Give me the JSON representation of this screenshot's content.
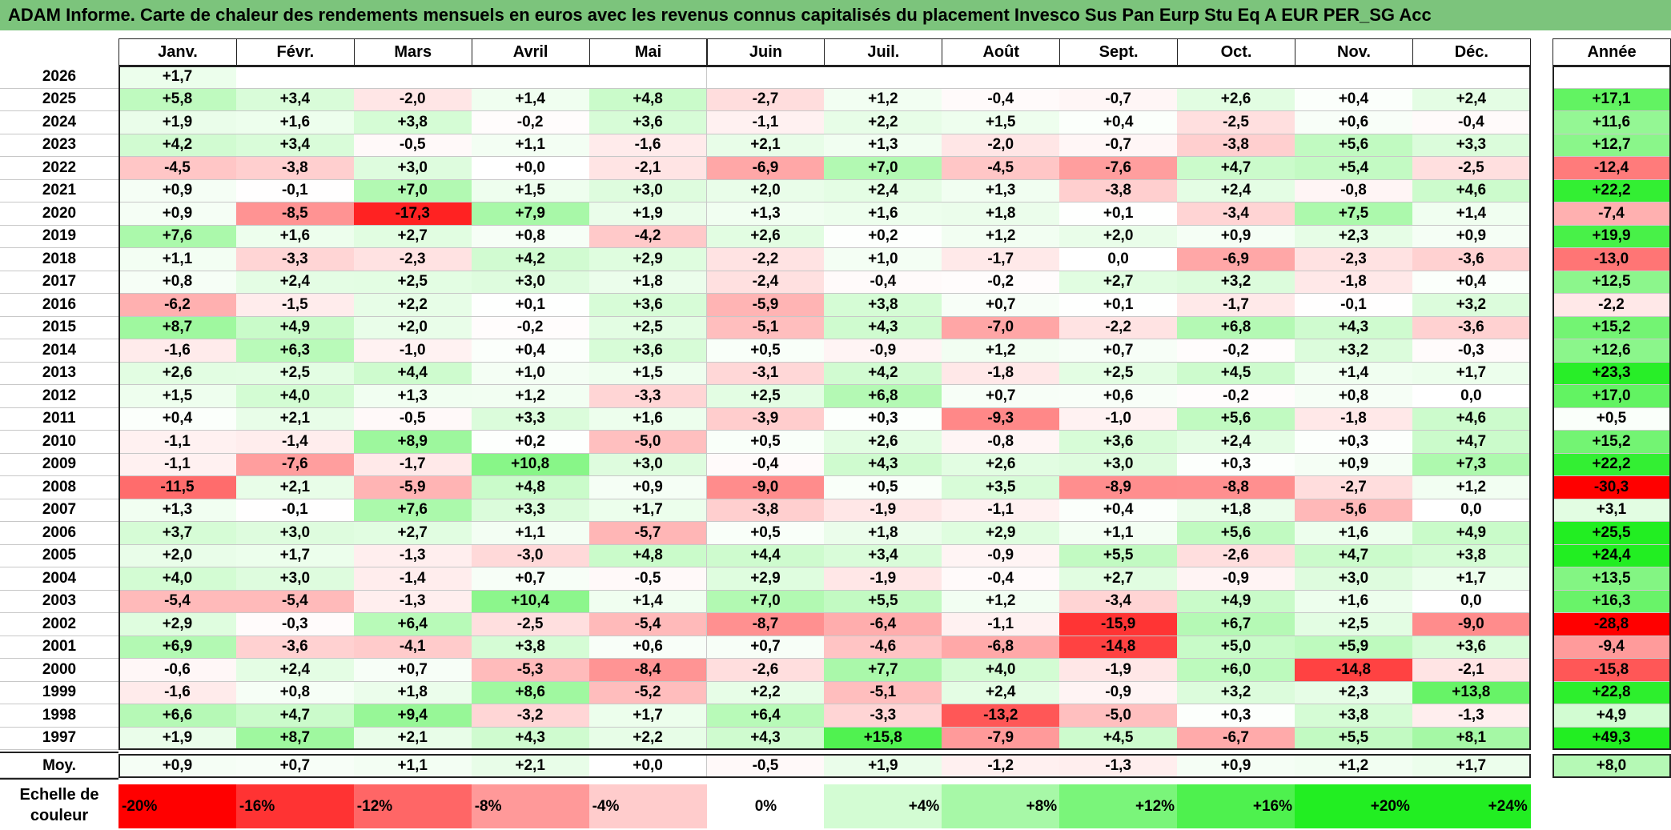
{
  "title": "ADAM Informe. Carte de chaleur des rendements mensuels en euros avec les revenus connus capitalisés du placement Invesco Sus Pan Eurp Stu Eq A EUR PER_SG Acc",
  "months": [
    "Janv.",
    "Févr.",
    "Mars",
    "Avril",
    "Mai",
    "Juin",
    "Juil.",
    "Août",
    "Sept.",
    "Oct.",
    "Nov.",
    "Déc."
  ],
  "annual_header": "Année",
  "average_label": "Moy.",
  "scale_label_1": "Echelle de",
  "scale_label_2": "couleur",
  "colors": {
    "title_bar": "#7cc47c",
    "negative_max": "#ff0000",
    "neutral": "#ffffff",
    "positive_max": "#22ee22"
  },
  "chart_data": {
    "type": "heatmap",
    "title": "ADAM Informe. Carte de chaleur des rendements mensuels en euros avec les revenus connus capitalisés du placement Invesco Sus Pan Eurp Stu Eq A EUR PER_SG Acc",
    "columns": [
      "Janv.",
      "Févr.",
      "Mars",
      "Avril",
      "Mai",
      "Juin",
      "Juil.",
      "Août",
      "Sept.",
      "Oct.",
      "Nov.",
      "Déc.",
      "Année"
    ],
    "rows": [
      {
        "year": "2026",
        "months": [
          "+1,7",
          null,
          null,
          null,
          null,
          null,
          null,
          null,
          null,
          null,
          null,
          null
        ],
        "annual": null
      },
      {
        "year": "2025",
        "months": [
          "+5,8",
          "+3,4",
          "-2,0",
          "+1,4",
          "+4,8",
          "-2,7",
          "+1,2",
          "-0,4",
          "-0,7",
          "+2,6",
          "+0,4",
          "+2,4"
        ],
        "annual": "+17,1"
      },
      {
        "year": "2024",
        "months": [
          "+1,9",
          "+1,6",
          "+3,8",
          "-0,2",
          "+3,6",
          "-1,1",
          "+2,2",
          "+1,5",
          "+0,4",
          "-2,5",
          "+0,6",
          "-0,4"
        ],
        "annual": "+11,6"
      },
      {
        "year": "2023",
        "months": [
          "+4,2",
          "+3,4",
          "-0,5",
          "+1,1",
          "-1,6",
          "+2,1",
          "+1,3",
          "-2,0",
          "-0,7",
          "-3,8",
          "+5,6",
          "+3,3"
        ],
        "annual": "+12,7"
      },
      {
        "year": "2022",
        "months": [
          "-4,5",
          "-3,8",
          "+3,0",
          "+0,0",
          "-2,1",
          "-6,9",
          "+7,0",
          "-4,5",
          "-7,6",
          "+4,7",
          "+5,4",
          "-2,5"
        ],
        "annual": "-12,4"
      },
      {
        "year": "2021",
        "months": [
          "+0,9",
          "-0,1",
          "+7,0",
          "+1,5",
          "+3,0",
          "+2,0",
          "+2,4",
          "+1,3",
          "-3,8",
          "+2,4",
          "-0,8",
          "+4,6"
        ],
        "annual": "+22,2"
      },
      {
        "year": "2020",
        "months": [
          "+0,9",
          "-8,5",
          "-17,3",
          "+7,9",
          "+1,9",
          "+1,3",
          "+1,6",
          "+1,8",
          "+0,1",
          "-3,4",
          "+7,5",
          "+1,4"
        ],
        "annual": "-7,4"
      },
      {
        "year": "2019",
        "months": [
          "+7,6",
          "+1,6",
          "+2,7",
          "+0,8",
          "-4,2",
          "+2,6",
          "+0,2",
          "+1,2",
          "+2,0",
          "+0,9",
          "+2,3",
          "+0,9"
        ],
        "annual": "+19,9"
      },
      {
        "year": "2018",
        "months": [
          "+1,1",
          "-3,3",
          "-2,3",
          "+4,2",
          "+2,9",
          "-2,2",
          "+1,0",
          "-1,7",
          "0,0",
          "-6,9",
          "-2,3",
          "-3,6"
        ],
        "annual": "-13,0"
      },
      {
        "year": "2017",
        "months": [
          "+0,8",
          "+2,4",
          "+2,5",
          "+3,0",
          "+1,8",
          "-2,4",
          "-0,4",
          "-0,2",
          "+2,7",
          "+3,2",
          "-1,8",
          "+0,4"
        ],
        "annual": "+12,5"
      },
      {
        "year": "2016",
        "months": [
          "-6,2",
          "-1,5",
          "+2,2",
          "+0,1",
          "+3,6",
          "-5,9",
          "+3,8",
          "+0,7",
          "+0,1",
          "-1,7",
          "-0,1",
          "+3,2"
        ],
        "annual": "-2,2"
      },
      {
        "year": "2015",
        "months": [
          "+8,7",
          "+4,9",
          "+2,0",
          "-0,2",
          "+2,5",
          "-5,1",
          "+4,3",
          "-7,0",
          "-2,2",
          "+6,8",
          "+4,3",
          "-3,6"
        ],
        "annual": "+15,2"
      },
      {
        "year": "2014",
        "months": [
          "-1,6",
          "+6,3",
          "-1,0",
          "+0,4",
          "+3,6",
          "+0,5",
          "-0,9",
          "+1,2",
          "+0,7",
          "-0,2",
          "+3,2",
          "-0,3"
        ],
        "annual": "+12,6"
      },
      {
        "year": "2013",
        "months": [
          "+2,6",
          "+2,5",
          "+4,4",
          "+1,0",
          "+1,5",
          "-3,1",
          "+4,2",
          "-1,8",
          "+2,5",
          "+4,5",
          "+1,4",
          "+1,7"
        ],
        "annual": "+23,3"
      },
      {
        "year": "2012",
        "months": [
          "+1,5",
          "+4,0",
          "+1,3",
          "+1,2",
          "-3,3",
          "+2,5",
          "+6,8",
          "+0,7",
          "+0,6",
          "-0,2",
          "+0,8",
          "0,0"
        ],
        "annual": "+17,0"
      },
      {
        "year": "2011",
        "months": [
          "+0,4",
          "+2,1",
          "-0,5",
          "+3,3",
          "+1,6",
          "-3,9",
          "+0,3",
          "-9,3",
          "-1,0",
          "+5,6",
          "-1,8",
          "+4,6"
        ],
        "annual": "+0,5"
      },
      {
        "year": "2010",
        "months": [
          "-1,1",
          "-1,4",
          "+8,9",
          "+0,2",
          "-5,0",
          "+0,5",
          "+2,6",
          "-0,8",
          "+3,6",
          "+2,4",
          "+0,3",
          "+4,7"
        ],
        "annual": "+15,2"
      },
      {
        "year": "2009",
        "months": [
          "-1,1",
          "-7,6",
          "-1,7",
          "+10,8",
          "+3,0",
          "-0,4",
          "+4,3",
          "+2,6",
          "+3,0",
          "+0,3",
          "+0,9",
          "+7,3"
        ],
        "annual": "+22,2"
      },
      {
        "year": "2008",
        "months": [
          "-11,5",
          "+2,1",
          "-5,9",
          "+4,8",
          "+0,9",
          "-9,0",
          "+0,5",
          "+3,5",
          "-8,9",
          "-8,8",
          "-2,7",
          "+1,2"
        ],
        "annual": "-30,3"
      },
      {
        "year": "2007",
        "months": [
          "+1,3",
          "-0,1",
          "+7,6",
          "+3,3",
          "+1,7",
          "-3,8",
          "-1,9",
          "-1,1",
          "+0,4",
          "+1,8",
          "-5,6",
          "0,0"
        ],
        "annual": "+3,1"
      },
      {
        "year": "2006",
        "months": [
          "+3,7",
          "+3,0",
          "+2,7",
          "+1,1",
          "-5,7",
          "+0,5",
          "+1,8",
          "+2,9",
          "+1,1",
          "+5,6",
          "+1,6",
          "+4,9"
        ],
        "annual": "+25,5"
      },
      {
        "year": "2005",
        "months": [
          "+2,0",
          "+1,7",
          "-1,3",
          "-3,0",
          "+4,8",
          "+4,4",
          "+3,4",
          "-0,9",
          "+5,5",
          "-2,6",
          "+4,7",
          "+3,8"
        ],
        "annual": "+24,4"
      },
      {
        "year": "2004",
        "months": [
          "+4,0",
          "+3,0",
          "-1,4",
          "+0,7",
          "-0,5",
          "+2,9",
          "-1,9",
          "-0,4",
          "+2,7",
          "-0,9",
          "+3,0",
          "+1,7"
        ],
        "annual": "+13,5"
      },
      {
        "year": "2003",
        "months": [
          "-5,4",
          "-5,4",
          "-1,3",
          "+10,4",
          "+1,4",
          "+7,0",
          "+5,5",
          "+1,2",
          "-3,4",
          "+4,9",
          "+1,6",
          "0,0"
        ],
        "annual": "+16,3"
      },
      {
        "year": "2002",
        "months": [
          "+2,9",
          "-0,3",
          "+6,4",
          "-2,5",
          "-5,4",
          "-8,7",
          "-6,4",
          "-1,1",
          "-15,9",
          "+6,7",
          "+2,5",
          "-9,0"
        ],
        "annual": "-28,8"
      },
      {
        "year": "2001",
        "months": [
          "+6,9",
          "-3,6",
          "-4,1",
          "+3,8",
          "+0,6",
          "+0,7",
          "-4,6",
          "-6,8",
          "-14,8",
          "+5,0",
          "+5,9",
          "+3,6"
        ],
        "annual": "-9,4"
      },
      {
        "year": "2000",
        "months": [
          "-0,6",
          "+2,4",
          "+0,7",
          "-5,3",
          "-8,4",
          "-2,6",
          "+7,7",
          "+4,0",
          "-1,9",
          "+6,0",
          "-14,8",
          "-2,1"
        ],
        "annual": "-15,8"
      },
      {
        "year": "1999",
        "months": [
          "-1,6",
          "+0,8",
          "+1,8",
          "+8,6",
          "-5,2",
          "+2,2",
          "-5,1",
          "+2,4",
          "-0,9",
          "+3,2",
          "+2,3",
          "+13,8"
        ],
        "annual": "+22,8"
      },
      {
        "year": "1998",
        "months": [
          "+6,6",
          "+4,7",
          "+9,4",
          "-3,2",
          "+1,7",
          "+6,4",
          "-3,3",
          "-13,2",
          "-5,0",
          "+0,3",
          "+3,8",
          "-1,3"
        ],
        "annual": "+4,9"
      },
      {
        "year": "1997",
        "months": [
          "+1,9",
          "+8,7",
          "+2,1",
          "+4,3",
          "+2,2",
          "+4,3",
          "+15,8",
          "-7,9",
          "+4,5",
          "-6,7",
          "+5,5",
          "+8,1"
        ],
        "annual": "+49,3"
      }
    ],
    "averages": {
      "months": [
        "+0,9",
        "+0,7",
        "+1,1",
        "+2,1",
        "+0,0",
        "-0,5",
        "+1,9",
        "-1,2",
        "-1,3",
        "+0,9",
        "+1,2",
        "+1,7"
      ],
      "annual": "+8,0"
    },
    "color_scale": [
      "-20%",
      "-16%",
      "-12%",
      "-8%",
      "-4%",
      "0%",
      "+4%",
      "+8%",
      "+12%",
      "+16%",
      "+20%",
      "+24%"
    ],
    "color_scale_values": [
      -20,
      -16,
      -12,
      -8,
      -4,
      0,
      4,
      8,
      12,
      16,
      20,
      24
    ]
  }
}
